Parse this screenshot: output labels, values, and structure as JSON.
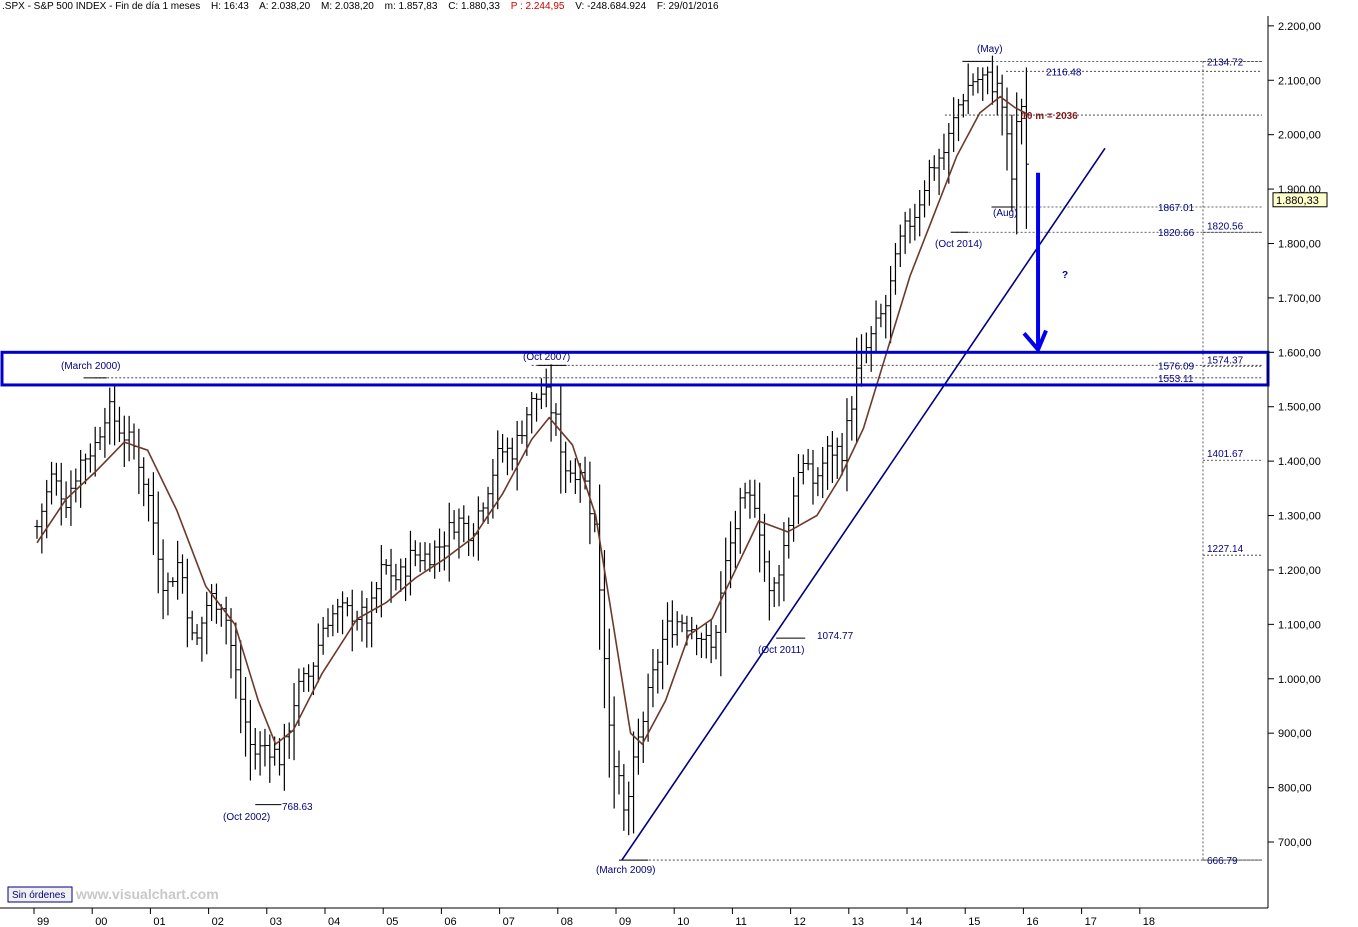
{
  "header": {
    "symbol": ".SPX - S&P 500 INDEX - Fin de día 1 meses",
    "h": "H: 16:43",
    "a": "A: 2.038,20",
    "m": "M: 2.038,20",
    "mn": "m: 1.857,83",
    "c": "C: 1.880,33",
    "p": "P : 2.244,95",
    "v": "V: -248.684.924",
    "f": "F: 29/01/2016"
  },
  "footer": {
    "badge": "Sin órdenes",
    "watermark": "www.visualchart.com"
  },
  "colors": {
    "bars": "#000000",
    "ma": "#6b3a2a",
    "trendline": "#000080",
    "zone": "#0000cc",
    "arrow": "#0000ee",
    "ma_label": "#8b1a1a"
  },
  "chart_data": {
    "type": "bar",
    "title": "",
    "xlabel": "",
    "ylabel": "",
    "ylim": [
      600,
      2200
    ],
    "xlim": [
      1999.0,
      2019.3
    ],
    "y_ticks": [
      700,
      800,
      900,
      1000,
      1100,
      1200,
      1300,
      1400,
      1500,
      1600,
      1700,
      1800,
      1900,
      2000,
      2100,
      2200
    ],
    "y_tick_labels": [
      "700,00",
      "800,00",
      "900,00",
      "1.000,00",
      "1.100,00",
      "1.200,00",
      "1.300,00",
      "1.400,00",
      "1.500,00",
      "1.600,00",
      "1.700,00",
      "1.800,00",
      "1.900,00",
      "2.000,00",
      "2.100,00",
      "2.200,00"
    ],
    "x_tick_labels": [
      "99",
      "00",
      "01",
      "02",
      "03",
      "04",
      "05",
      "06",
      "07",
      "08",
      "09",
      "10",
      "11",
      "12",
      "13",
      "14",
      "15",
      "16",
      "17",
      "18"
    ],
    "x_tick_years": [
      1999,
      2000,
      2001,
      2002,
      2003,
      2004,
      2005,
      2006,
      2007,
      2008,
      2009,
      2010,
      2011,
      2012,
      2013,
      2014,
      2015,
      2016,
      2017,
      2018
    ],
    "last_price": 1880.33,
    "last_price_label": "1.880,33",
    "ma_label": "10 m = 2036",
    "monthly_closes": [
      {
        "t": 1999.0,
        "c": 1280
      },
      {
        "t": 1999.25,
        "c": 1370
      },
      {
        "t": 1999.5,
        "c": 1330
      },
      {
        "t": 1999.75,
        "c": 1400
      },
      {
        "t": 2000.0,
        "c": 1430
      },
      {
        "t": 2000.2,
        "c": 1500
      },
      {
        "t": 2000.45,
        "c": 1455
      },
      {
        "t": 2000.7,
        "c": 1420
      },
      {
        "t": 2000.95,
        "c": 1320
      },
      {
        "t": 2001.2,
        "c": 1160
      },
      {
        "t": 2001.45,
        "c": 1220
      },
      {
        "t": 2001.7,
        "c": 1050
      },
      {
        "t": 2001.95,
        "c": 1150
      },
      {
        "t": 2002.2,
        "c": 1140
      },
      {
        "t": 2002.45,
        "c": 990
      },
      {
        "t": 2002.7,
        "c": 860
      },
      {
        "t": 2002.95,
        "c": 880
      },
      {
        "t": 2003.2,
        "c": 850
      },
      {
        "t": 2003.45,
        "c": 975
      },
      {
        "t": 2003.7,
        "c": 1010
      },
      {
        "t": 2003.95,
        "c": 1110
      },
      {
        "t": 2004.2,
        "c": 1125
      },
      {
        "t": 2004.45,
        "c": 1120
      },
      {
        "t": 2004.7,
        "c": 1110
      },
      {
        "t": 2004.95,
        "c": 1210
      },
      {
        "t": 2005.2,
        "c": 1180
      },
      {
        "t": 2005.45,
        "c": 1230
      },
      {
        "t": 2005.7,
        "c": 1225
      },
      {
        "t": 2005.95,
        "c": 1248
      },
      {
        "t": 2006.2,
        "c": 1295
      },
      {
        "t": 2006.45,
        "c": 1270
      },
      {
        "t": 2006.7,
        "c": 1340
      },
      {
        "t": 2006.95,
        "c": 1418
      },
      {
        "t": 2007.2,
        "c": 1420
      },
      {
        "t": 2007.45,
        "c": 1500
      },
      {
        "t": 2007.7,
        "c": 1530
      },
      {
        "t": 2007.9,
        "c": 1480
      },
      {
        "t": 2008.1,
        "c": 1380
      },
      {
        "t": 2008.35,
        "c": 1390
      },
      {
        "t": 2008.6,
        "c": 1270
      },
      {
        "t": 2008.85,
        "c": 900
      },
      {
        "t": 2009.1,
        "c": 740
      },
      {
        "t": 2009.3,
        "c": 870
      },
      {
        "t": 2009.55,
        "c": 990
      },
      {
        "t": 2009.8,
        "c": 1090
      },
      {
        "t": 2010.05,
        "c": 1110
      },
      {
        "t": 2010.35,
        "c": 1090
      },
      {
        "t": 2010.6,
        "c": 1050
      },
      {
        "t": 2010.85,
        "c": 1220
      },
      {
        "t": 2011.1,
        "c": 1320
      },
      {
        "t": 2011.35,
        "c": 1330
      },
      {
        "t": 2011.6,
        "c": 1140
      },
      {
        "t": 2011.85,
        "c": 1250
      },
      {
        "t": 2012.1,
        "c": 1400
      },
      {
        "t": 2012.35,
        "c": 1360
      },
      {
        "t": 2012.6,
        "c": 1420
      },
      {
        "t": 2012.85,
        "c": 1420
      },
      {
        "t": 2013.1,
        "c": 1570
      },
      {
        "t": 2013.35,
        "c": 1630
      },
      {
        "t": 2013.6,
        "c": 1690
      },
      {
        "t": 2013.85,
        "c": 1810
      },
      {
        "t": 2014.1,
        "c": 1860
      },
      {
        "t": 2014.35,
        "c": 1940
      },
      {
        "t": 2014.6,
        "c": 1970
      },
      {
        "t": 2014.85,
        "c": 2060
      },
      {
        "t": 2015.05,
        "c": 2100
      },
      {
        "t": 2015.3,
        "c": 2105
      },
      {
        "t": 2015.55,
        "c": 2080
      },
      {
        "t": 2015.75,
        "c": 1920
      },
      {
        "t": 2015.9,
        "c": 2080
      },
      {
        "t": 2016.05,
        "c": 1880
      }
    ],
    "moving_average": [
      {
        "t": 1999.0,
        "v": 1250
      },
      {
        "t": 1999.5,
        "v": 1330
      },
      {
        "t": 2000.0,
        "v": 1380
      },
      {
        "t": 2000.5,
        "v": 1435
      },
      {
        "t": 2000.9,
        "v": 1420
      },
      {
        "t": 2001.4,
        "v": 1310
      },
      {
        "t": 2001.9,
        "v": 1170
      },
      {
        "t": 2002.4,
        "v": 1100
      },
      {
        "t": 2002.8,
        "v": 960
      },
      {
        "t": 2003.1,
        "v": 880
      },
      {
        "t": 2003.4,
        "v": 905
      },
      {
        "t": 2003.9,
        "v": 1010
      },
      {
        "t": 2004.5,
        "v": 1110
      },
      {
        "t": 2005.0,
        "v": 1140
      },
      {
        "t": 2005.5,
        "v": 1185
      },
      {
        "t": 2006.0,
        "v": 1220
      },
      {
        "t": 2006.5,
        "v": 1260
      },
      {
        "t": 2007.0,
        "v": 1340
      },
      {
        "t": 2007.5,
        "v": 1440
      },
      {
        "t": 2007.8,
        "v": 1480
      },
      {
        "t": 2008.2,
        "v": 1430
      },
      {
        "t": 2008.6,
        "v": 1300
      },
      {
        "t": 2008.9,
        "v": 1100
      },
      {
        "t": 2009.2,
        "v": 900
      },
      {
        "t": 2009.4,
        "v": 880
      },
      {
        "t": 2009.8,
        "v": 960
      },
      {
        "t": 2010.2,
        "v": 1080
      },
      {
        "t": 2010.6,
        "v": 1110
      },
      {
        "t": 2011.0,
        "v": 1200
      },
      {
        "t": 2011.4,
        "v": 1290
      },
      {
        "t": 2011.9,
        "v": 1270
      },
      {
        "t": 2012.4,
        "v": 1300
      },
      {
        "t": 2012.8,
        "v": 1370
      },
      {
        "t": 2013.2,
        "v": 1460
      },
      {
        "t": 2013.6,
        "v": 1600
      },
      {
        "t": 2014.0,
        "v": 1740
      },
      {
        "t": 2014.4,
        "v": 1850
      },
      {
        "t": 2014.8,
        "v": 1960
      },
      {
        "t": 2015.2,
        "v": 2040
      },
      {
        "t": 2015.55,
        "v": 2070
      },
      {
        "t": 2015.8,
        "v": 2050
      },
      {
        "t": 2016.05,
        "v": 2036
      }
    ],
    "trendline": {
      "t1": 2009.05,
      "v1": 666.79,
      "t2": 2017.35,
      "v2": 1975
    },
    "resistance_zone": {
      "low": 1540,
      "high": 1600
    },
    "levels": [
      {
        "value": 2134.72,
        "label": "2134.72",
        "t_start": 2015.0
      },
      {
        "value": 2116.48,
        "label": "2116.48",
        "t_start": 2015.65
      },
      {
        "value": 2036,
        "label": "",
        "t_start": 2014.6
      },
      {
        "value": 1867.01,
        "label": "1867.01",
        "t_start": 2015.4
      },
      {
        "value": 1820.66,
        "label": "1820.66",
        "t_start": 2014.8
      },
      {
        "value": 1576.09,
        "label": "1576.09",
        "t_start": 2007.5
      },
      {
        "value": 1553.11,
        "label": "1553.11",
        "t_start": 2000.0
      },
      {
        "value": 666.79,
        "label": "666.79",
        "t_start": 2009.1
      }
    ],
    "fib_scale": [
      {
        "value": 2134.72,
        "label": ""
      },
      {
        "value": 1820.56,
        "label": "1820.56"
      },
      {
        "value": 1574.37,
        "label": "1574.37"
      },
      {
        "value": 1401.67,
        "label": "1401.67"
      },
      {
        "value": 1227.14,
        "label": "1227.14"
      },
      {
        "value": 666.79,
        "label": ""
      }
    ],
    "annotations": [
      {
        "label": "(March  2000)",
        "t": 2000.0,
        "v": 1553
      },
      {
        "label": "(Oct 2007)",
        "t": 2007.8,
        "v": 1576
      },
      {
        "label": "(Oct 2002)",
        "t": 2002.8,
        "v": 768.63
      },
      {
        "label": "768.63",
        "t": 2003.0,
        "v": 768.63
      },
      {
        "label": "(March 2009)",
        "t": 2009.0,
        "v": 666.79
      },
      {
        "label": "(Oct 2011)",
        "t": 2011.8,
        "v": 1074.77
      },
      {
        "label": "1074.77",
        "t": 2012.0,
        "v": 1074.77
      },
      {
        "label": "(Oct 2014)",
        "t": 2014.8,
        "v": 1820.66
      },
      {
        "label": "(Aug)",
        "t": 2015.6,
        "v": 1867.01
      },
      {
        "label": "(May)",
        "t": 2015.4,
        "v": 2134.72
      },
      {
        "label": "?",
        "t": 2016.5,
        "v": 1770
      }
    ]
  }
}
